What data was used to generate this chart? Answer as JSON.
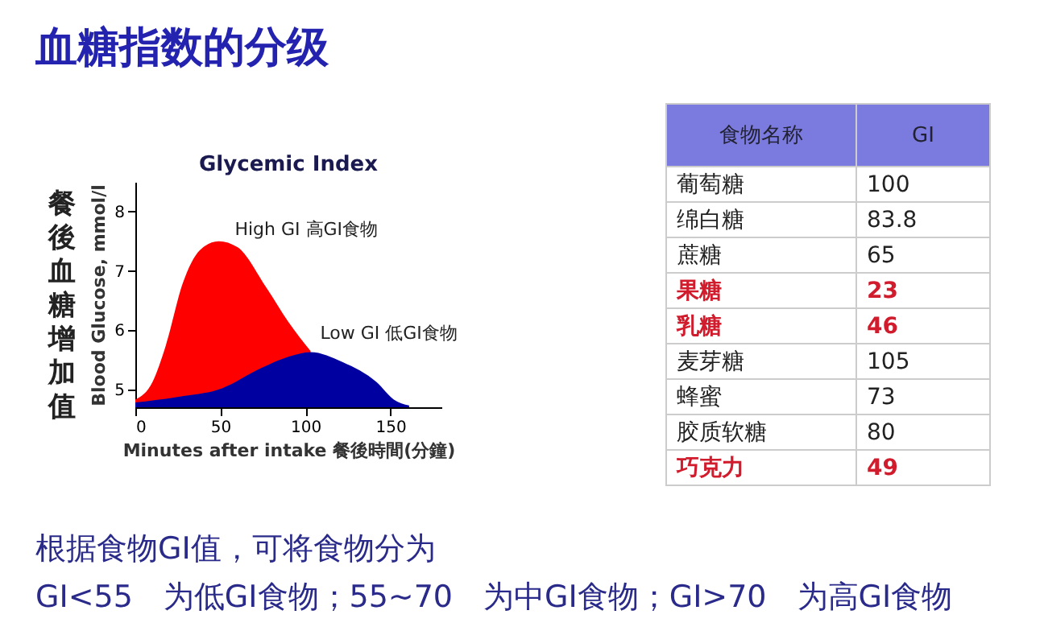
{
  "chart_data": [
    {
      "type": "area",
      "title": "血糖指数的分级",
      "subtitle": "Glycemic Index",
      "xlabel": "Minutes after intake 餐後時間(分鐘)",
      "ylabel": "Blood Glucose, mmol/l",
      "annotations": [
        "餐後血糖增加值"
      ],
      "xlim": [
        0,
        180
      ],
      "ylim": [
        4.7,
        8.5
      ],
      "xticks": [
        0,
        50,
        100,
        150
      ],
      "yticks": [
        5,
        6,
        7,
        8
      ],
      "grid": false,
      "series": [
        {
          "name": "High GI 高GI食物",
          "color": "#ff0000",
          "x": [
            0,
            10,
            18,
            28,
            38,
            49,
            60,
            77,
            90,
            103
          ],
          "values": [
            4.83,
            5.12,
            5.75,
            6.8,
            7.35,
            7.5,
            7.4,
            6.72,
            6.14,
            5.65
          ]
        },
        {
          "name": "Low GI 低GI食物",
          "color": "#0000a0",
          "x": [
            0,
            24,
            51,
            74,
            90,
            103,
            122,
            142,
            152,
            161
          ],
          "values": [
            4.78,
            4.87,
            5.02,
            5.36,
            5.55,
            5.63,
            5.46,
            5.12,
            4.83,
            4.73
          ]
        }
      ]
    },
    {
      "type": "other",
      "xlabel": "食物名称",
      "ylabel": "GI",
      "data_labels": true,
      "categories": [
        "葡萄糖",
        "绵白糖",
        "蔗糖",
        "果糖",
        "乳糖",
        "麦芽糖",
        "蜂蜜",
        "胶质软糖",
        "巧克力"
      ],
      "values": [
        100,
        83.8,
        65,
        23,
        46,
        105,
        73,
        80,
        49
      ],
      "colors": [
        "#222222",
        "#222222",
        "#222222",
        "#d01c2c",
        "#d01c2c",
        "#222222",
        "#222222",
        "#222222",
        "#d01c2c"
      ],
      "annotations": [
        "根据食物GI值，可将食物分为",
        "GI<55　为低GI食物；55~70　为中GI食物；GI>70　为高GI食物"
      ]
    }
  ]
}
